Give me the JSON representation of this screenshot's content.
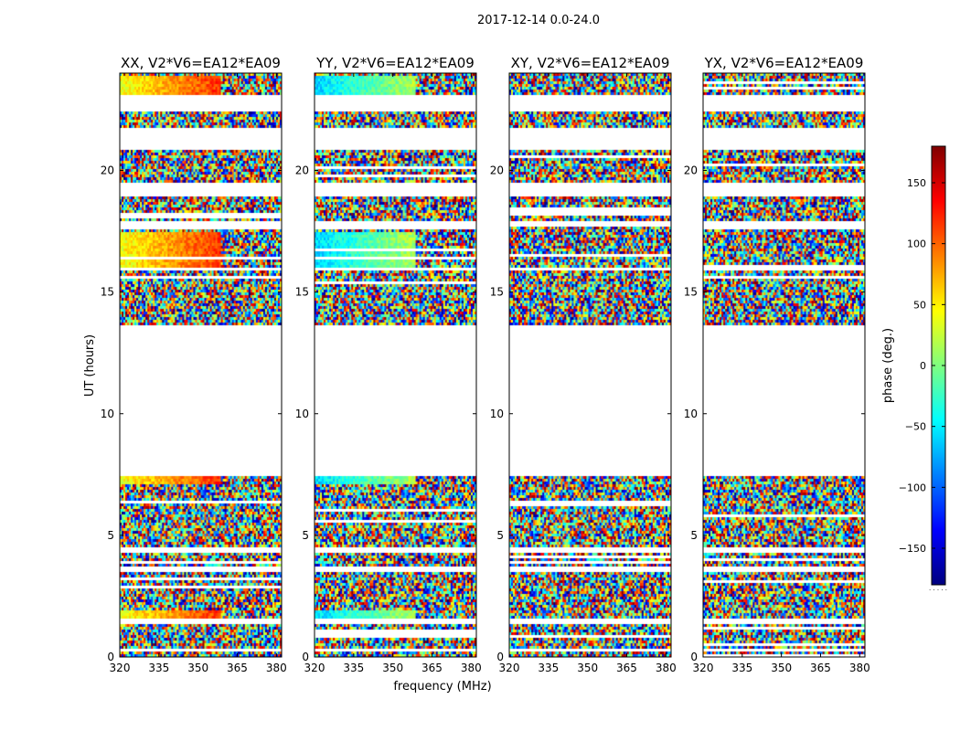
{
  "figure": {
    "title": "2017-12-14 0.0-24.0",
    "xlabel": "frequency (MHz)",
    "ylabel": "UT (hours)",
    "colorbar_label": "phase (deg.)"
  },
  "colors": {
    "background": "#ffffff",
    "axis": "#000000",
    "jet_stops": [
      "#00007f",
      "#0000ff",
      "#007fff",
      "#00ffff",
      "#7fff7f",
      "#ffff00",
      "#ff7f00",
      "#ff0000",
      "#7f0000"
    ]
  },
  "chart_data": {
    "type": "heatmap",
    "x_range_mhz": [
      320,
      382
    ],
    "y_range_hours": [
      0,
      24
    ],
    "x_ticks": [
      320,
      335,
      350,
      365,
      380
    ],
    "y_ticks": [
      0,
      5,
      10,
      15,
      20
    ],
    "colorbar": {
      "range": [
        -180,
        180
      ],
      "ticks": [
        -150,
        -100,
        -50,
        0,
        50,
        100,
        150
      ],
      "tick_labels": [
        "−150",
        "−100",
        "−50",
        "0",
        "50",
        "100",
        "150"
      ]
    },
    "panels": [
      {
        "title": "XX, V2*V6=EA12*EA09",
        "coherent_phase_bias_deg": 40
      },
      {
        "title": "YY, V2*V6=EA12*EA09",
        "coherent_phase_bias_deg": -60
      },
      {
        "title": "XY, V2*V6=EA12*EA09",
        "coherent_phase_bias_deg": null
      },
      {
        "title": "YX, V2*V6=EA12*EA09",
        "coherent_phase_bias_deg": null
      }
    ],
    "flagged_ut_gaps_hours": [
      [
        7.5,
        13.7
      ],
      [
        22.5,
        23.2
      ],
      [
        20.9,
        21.8
      ],
      [
        19.0,
        19.6
      ],
      [
        17.8,
        18.0
      ],
      [
        15.9,
        16.1
      ],
      [
        4.3,
        4.6
      ],
      [
        3.6,
        3.8
      ],
      [
        1.4,
        1.6
      ],
      [
        0.3,
        0.45
      ]
    ],
    "notes": "Baseline visibility phase waterfall; data gap between ~7.5 and ~13.7 UT."
  }
}
